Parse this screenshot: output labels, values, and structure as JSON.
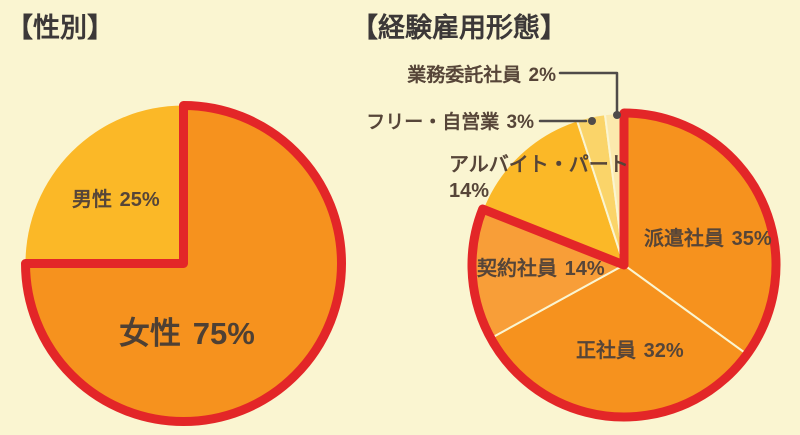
{
  "page": {
    "background_color": "#FAF5D1",
    "title_text_color": "#3C3838",
    "label_text_color": "#564538"
  },
  "chart_data": [
    {
      "type": "pie",
      "title": "【性別】",
      "start_angle_deg": 0,
      "direction": "clockwise",
      "outline_color": "#E32628",
      "slices": [
        {
          "label": "女性",
          "pct": 75,
          "pct_label": "75%",
          "color": "#F6921E",
          "outlined": true
        },
        {
          "label": "男性",
          "pct": 25,
          "pct_label": "25%",
          "color": "#FBB827",
          "outlined": false
        }
      ]
    },
    {
      "type": "pie",
      "title": "【経験雇用形態】",
      "start_angle_deg": 0,
      "direction": "clockwise",
      "outline_color": "#E32628",
      "divider_color": "#FAF5D1",
      "leader_line_color": "#4F4B49",
      "slices": [
        {
          "label": "派遣社員",
          "pct": 35,
          "pct_label": "35%",
          "color": "#F6921E",
          "outlined": true
        },
        {
          "label": "正社員",
          "pct": 32,
          "pct_label": "32%",
          "color": "#F6921E",
          "outlined": true
        },
        {
          "label": "契約社員",
          "pct": 14,
          "pct_label": "14%",
          "color": "#F89E38",
          "outlined": true
        },
        {
          "label": "アルバイト・パート",
          "pct": 14,
          "pct_label": "14%",
          "color": "#FBB827",
          "outlined": false
        },
        {
          "label": "フリー・自営業",
          "pct": 3,
          "pct_label": "3%",
          "color": "#FAD469",
          "outlined": false
        },
        {
          "label": "業務委託社員",
          "pct": 2,
          "pct_label": "2%",
          "color": "#FBE9AD",
          "outlined": false
        }
      ]
    }
  ]
}
